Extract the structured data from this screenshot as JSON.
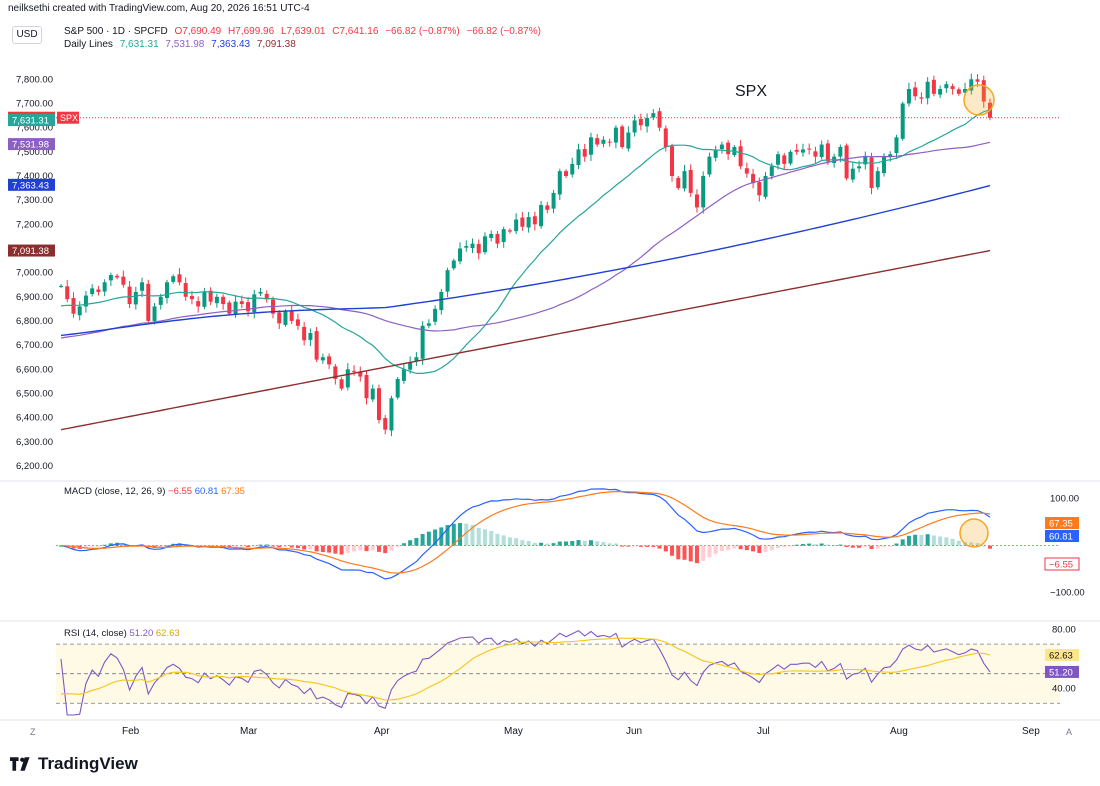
{
  "header": {
    "credit": "neilksethi created with TradingView.com, Aug 20, 2026 16:51 UTC-4",
    "currency_button": "USD",
    "symbol": "S&P 500 · 1D · SPCFD",
    "ohlc": {
      "o": "O7,690.49",
      "h": "H7,699.96",
      "l": "L7,639.01",
      "c": "C7,641.16",
      "chg": "−66.82 (−0.87%)",
      "chg2": "−66.82 (−0.87%)"
    },
    "daily_lines_label": "Daily Lines",
    "daily_lines_values": [
      "7,631.31",
      "7,531.98",
      "7,363.43",
      "7,091.38"
    ],
    "macd_label": "MACD (close, 12, 26, 9)",
    "macd_values": [
      "−6.55",
      "60.81",
      "67.35"
    ],
    "rsi_label": "RSI (14, close)",
    "rsi_values": [
      "51.20",
      "62.63"
    ]
  },
  "annotation_text": "SPX",
  "brand": "TradingView",
  "corner_left": "Z",
  "corner_right": "A",
  "colors": {
    "up": "#089981",
    "down": "#f23645",
    "ma20": "#26a69a",
    "ma50": "#8e5fc2",
    "ma100": "#1f3fd6",
    "ma200": "#8b2e2e",
    "macd": "#2962ff",
    "signal": "#ff7a1a",
    "rsi": "#7e57c2",
    "rsi_ma": "#f5c518",
    "circle": "#f5a623"
  },
  "chart_data": [
    {
      "type": "candlestick",
      "title": "S&P 500 · 1D · SPCFD",
      "annotation": "SPX",
      "ylim": [
        6150,
        7880
      ],
      "yticks": [
        "6,200.00",
        "6,300.00",
        "6,400.00",
        "6,500.00",
        "6,600.00",
        "6,700.00",
        "6,800.00",
        "6,900.00",
        "7,000.00",
        "7,100.00",
        "7,200.00",
        "7,300.00",
        "7,400.00",
        "7,500.00",
        "7,600.00",
        "7,700.00",
        "7,800.00"
      ],
      "xlabels": [
        "Feb",
        "Mar",
        "Apr",
        "May",
        "Jun",
        "Jul",
        "Aug",
        "Sep"
      ],
      "price_tags": [
        {
          "label": "7,641.16",
          "value": 7641.16,
          "color": "#f23645",
          "extra": "SPX"
        },
        {
          "label": "7,631.31",
          "value": 7631.31,
          "color": "#26a69a"
        },
        {
          "label": "7,531.98",
          "value": 7531.98,
          "color": "#8e5fc2"
        },
        {
          "label": "7,363.43",
          "value": 7363.43,
          "color": "#1f3fd6"
        },
        {
          "label": "7,091.38",
          "value": 7091.38,
          "color": "#8b2e2e"
        }
      ],
      "closes": [
        6945,
        6890,
        6830,
        6860,
        6905,
        6935,
        6920,
        6960,
        6990,
        6980,
        6950,
        6870,
        6920,
        6960,
        6800,
        6860,
        6900,
        6960,
        6985,
        6960,
        6900,
        6890,
        6860,
        6920,
        6880,
        6900,
        6870,
        6830,
        6880,
        6870,
        6840,
        6910,
        6920,
        6890,
        6830,
        6790,
        6840,
        6800,
        6780,
        6720,
        6750,
        6640,
        6650,
        6620,
        6560,
        6520,
        6600,
        6590,
        6570,
        6480,
        6520,
        6390,
        6350,
        6480,
        6560,
        6600,
        6630,
        6650,
        6780,
        6790,
        6850,
        6920,
        7010,
        7050,
        7100,
        7110,
        7120,
        7080,
        7150,
        7160,
        7120,
        7180,
        7170,
        7220,
        7190,
        7230,
        7200,
        7280,
        7260,
        7330,
        7420,
        7400,
        7450,
        7510,
        7480,
        7560,
        7530,
        7550,
        7540,
        7600,
        7520,
        7580,
        7630,
        7610,
        7640,
        7660,
        7600,
        7520,
        7400,
        7350,
        7420,
        7330,
        7270,
        7400,
        7480,
        7510,
        7530,
        7490,
        7520,
        7440,
        7410,
        7370,
        7320,
        7400,
        7440,
        7490,
        7450,
        7500,
        7500,
        7510,
        7510,
        7480,
        7530,
        7460,
        7480,
        7520,
        7390,
        7430,
        7440,
        7480,
        7350,
        7420,
        7480,
        7490,
        7560,
        7700,
        7760,
        7730,
        7720,
        7790,
        7740,
        7760,
        7780,
        7760,
        7740,
        7760,
        7800,
        7790,
        7708,
        7641
      ]
    },
    {
      "type": "line",
      "title": "MACD (close, 12, 26, 9)",
      "ylim": [
        -150,
        110
      ],
      "yticks": [
        "100.00",
        "−100.00"
      ],
      "last": {
        "hist": -6.55,
        "macd": 60.81,
        "signal": 67.35
      }
    },
    {
      "type": "line",
      "title": "RSI (14, close)",
      "ylim": [
        20,
        85
      ],
      "yticks": [
        "80.00",
        "40.00"
      ],
      "last": {
        "rsi": 51.2,
        "rsi_ma": 62.63
      }
    }
  ]
}
